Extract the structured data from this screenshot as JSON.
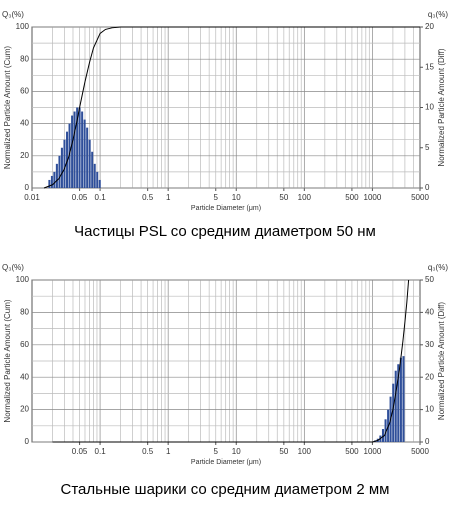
{
  "chart_data": [
    {
      "type": "combo",
      "caption": "Частицы PSL со средним диаметром 50 нм",
      "xlabel": "Particle Diameter (μm)",
      "ylabel": "Normalized Particle Amount (Cum)",
      "y2label": "Normalized Particle Amount (Diff)",
      "ytitle": "Q₃(%)",
      "y2title": "q₃(%)",
      "xscale": "log",
      "grid": true,
      "xlim": [
        0.01,
        5000
      ],
      "xticks": [
        0.01,
        0.05,
        0.1,
        0.5,
        1,
        5,
        10,
        50,
        100,
        500,
        1000,
        5000
      ],
      "ylim": [
        0,
        100
      ],
      "yticks": [
        0,
        20,
        40,
        60,
        80,
        100
      ],
      "y2lim": [
        0,
        20
      ],
      "y2ticks": [
        0,
        5,
        10,
        15,
        20
      ],
      "series": [
        {
          "kind": "bar",
          "axis": "y2",
          "color": "#2f4f9a",
          "x": [
            0.018,
            0.0196,
            0.0213,
            0.0232,
            0.0253,
            0.0275,
            0.03,
            0.0327,
            0.0356,
            0.0388,
            0.0422,
            0.046,
            0.05,
            0.0545,
            0.0593,
            0.0646,
            0.0703,
            0.0766,
            0.0834,
            0.0908,
            0.0989
          ],
          "values": [
            1,
            1.5,
            2,
            3,
            4,
            5,
            6,
            7,
            8,
            9,
            9.5,
            10,
            10,
            9.5,
            8.5,
            7.5,
            6,
            4.5,
            3,
            2,
            1
          ]
        },
        {
          "kind": "line",
          "axis": "y",
          "color": "#000000",
          "x": [
            0.015,
            0.02,
            0.025,
            0.03,
            0.035,
            0.04,
            0.045,
            0.05,
            0.06,
            0.07,
            0.08,
            0.1,
            0.12,
            0.15,
            0.2,
            0.3,
            5000
          ],
          "values": [
            0,
            2,
            6,
            12,
            20,
            30,
            40,
            50,
            66,
            78,
            87,
            96,
            98.5,
            99.5,
            100,
            100,
            100
          ]
        }
      ]
    },
    {
      "type": "combo",
      "caption": "Стальные шарики со средним диаметром 2 мм",
      "xlabel": "Particle Diameter (μm)",
      "ylabel": "Normalized Particle Amount (Cum)",
      "y2label": "Normalized Particle Amount (Diff)",
      "ytitle": "Q₃(%)",
      "y2title": "q₃(%)",
      "xscale": "log",
      "grid": true,
      "xlim": [
        0.01,
        5000
      ],
      "xticks": [
        0.05,
        0.1,
        0.5,
        1,
        5,
        10,
        50,
        100,
        500,
        1000,
        5000
      ],
      "ylim": [
        0,
        100
      ],
      "yticks": [
        0,
        20,
        40,
        60,
        80,
        100
      ],
      "y2lim": [
        0,
        50
      ],
      "y2ticks": [
        0,
        10,
        20,
        30,
        40,
        50
      ],
      "series": [
        {
          "kind": "bar",
          "axis": "y2",
          "color": "#2f4f9a",
          "x": [
            1100,
            1200,
            1310,
            1430,
            1560,
            1700,
            1850,
            2020,
            2200,
            2400,
            2620,
            2860
          ],
          "values": [
            0.5,
            1,
            2,
            4,
            7,
            10,
            14,
            18,
            22,
            24,
            26,
            26.5
          ]
        },
        {
          "kind": "line",
          "axis": "y",
          "color": "#000000",
          "x": [
            0.02,
            1000,
            1200,
            1500,
            1800,
            2000,
            2200,
            2500,
            2800,
            3000,
            3200,
            3400
          ],
          "values": [
            0,
            0,
            1,
            4,
            12,
            20,
            30,
            45,
            62,
            74,
            86,
            100
          ]
        }
      ]
    }
  ]
}
